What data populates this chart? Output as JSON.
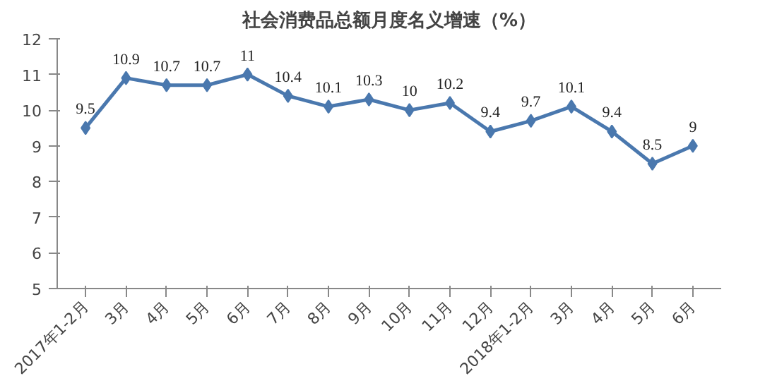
{
  "chart_data": {
    "type": "line",
    "title": "社会消费品总额月度名义增速（%）",
    "categories": [
      "2017年1-2月",
      "3月",
      "4月",
      "5月",
      "6月",
      "7月",
      "8月",
      "9月",
      "10月",
      "11月",
      "12月",
      "2018年1-2月",
      "3月",
      "4月",
      "5月",
      "6月"
    ],
    "series": [
      {
        "color": "#4a78ae",
        "values": [
          9.5,
          10.9,
          10.7,
          10.7,
          11,
          10.4,
          10.1,
          10.3,
          10,
          10.2,
          9.4,
          9.7,
          10.1,
          9.4,
          8.5,
          9
        ]
      }
    ],
    "ylim": [
      5,
      12
    ],
    "yticks": [
      5,
      6,
      7,
      8,
      9,
      10,
      11,
      12
    ],
    "grid": false,
    "marker": "diamond",
    "line_style": "solid",
    "data_labels": true
  }
}
